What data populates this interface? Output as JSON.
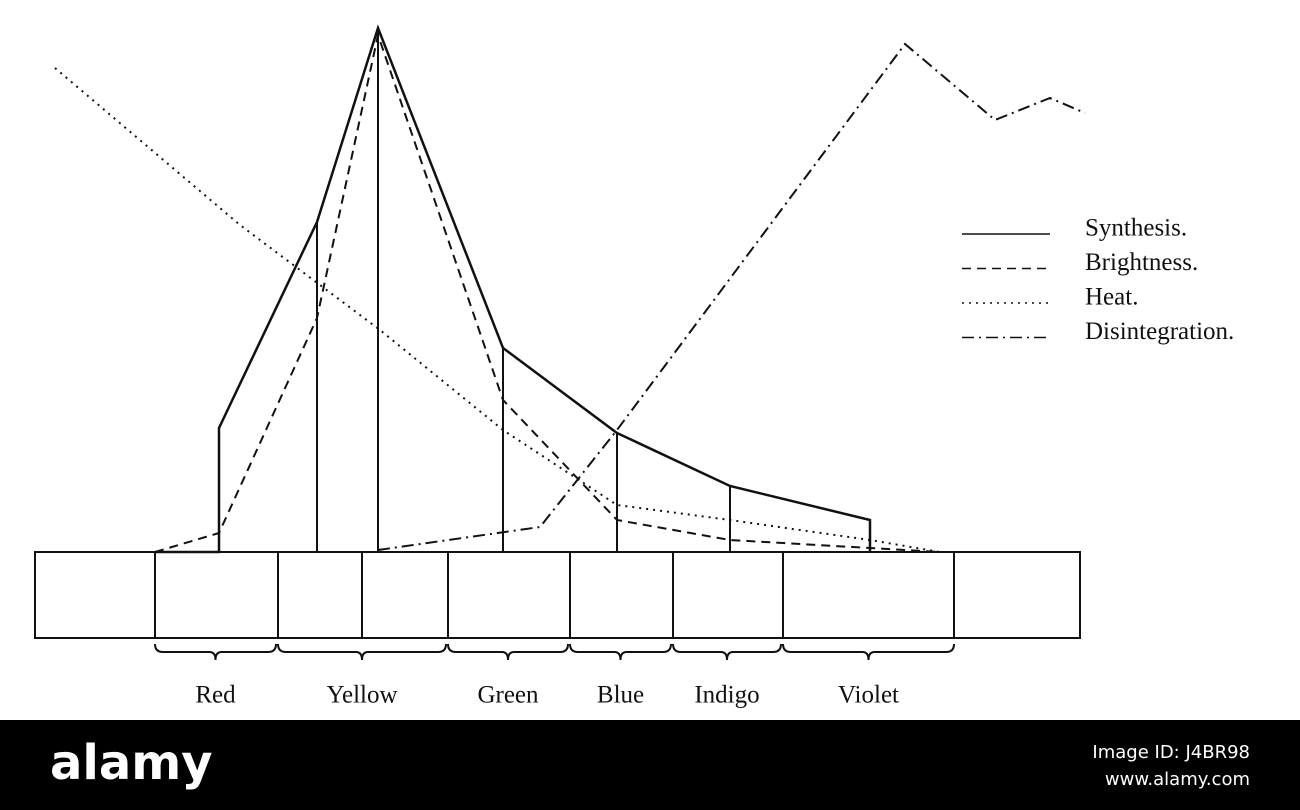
{
  "chart_data": {
    "type": "line",
    "xlim": [
      0,
      1300
    ],
    "ylim": [
      0,
      552
    ],
    "series": [
      {
        "name": "Synthesis.",
        "color": "#111",
        "dash": "solid",
        "x": [
          155,
          219,
          219,
          317,
          378,
          503,
          617,
          730,
          870,
          870
        ],
        "values": [
          0,
          0,
          124,
          330,
          524,
          204,
          119,
          66,
          32,
          0
        ]
      },
      {
        "name": "Brightness.",
        "color": "#111",
        "dash": "dashed",
        "x": [
          155,
          219,
          317,
          378,
          503,
          617,
          730,
          870,
          940
        ],
        "values": [
          0,
          19,
          234,
          517,
          152,
          32,
          12,
          4,
          0
        ]
      },
      {
        "name": "Heat.",
        "color": "#111",
        "dash": "dotted",
        "x": [
          55,
          240,
          380,
          503,
          617,
          730,
          870,
          940
        ],
        "values": [
          484,
          327,
          222,
          122,
          47,
          32,
          12,
          0
        ]
      },
      {
        "name": "Disintegration.",
        "color": "#111",
        "dash": "dashdot",
        "x": [
          378,
          540,
          617,
          905,
          995,
          1050,
          1085
        ],
        "values": [
          2,
          25,
          122,
          508,
          432,
          454,
          439
        ]
      }
    ],
    "bands": [
      {
        "label": "Red",
        "from": 155,
        "to": 276
      },
      {
        "label": "Yellow",
        "from": 278,
        "to": 446
      },
      {
        "label": "Green",
        "from": 448,
        "to": 568
      },
      {
        "label": "Blue",
        "from": 570,
        "to": 671
      },
      {
        "label": "Indigo",
        "from": 673,
        "to": 781
      },
      {
        "label": "Violet",
        "from": 783,
        "to": 954
      }
    ]
  },
  "watermark": {
    "brand": "alamy",
    "image_id": "Image ID: J4BR98",
    "site": "www.alamy.com"
  }
}
